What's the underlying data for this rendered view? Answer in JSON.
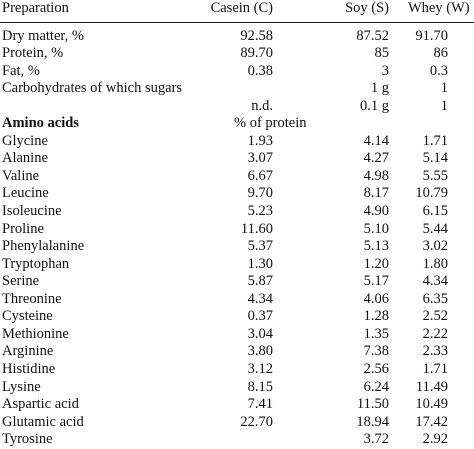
{
  "table": {
    "headers": [
      "Preparation",
      "Casein (C)",
      "Soy (S)",
      "Whey (W)"
    ],
    "rows": [
      {
        "label": "Dry matter, %",
        "c": "92.58",
        "s": "87.52",
        "w": "91.70"
      },
      {
        "label": "Protein, %",
        "c": "89.70",
        "s": "85",
        "w": "86"
      },
      {
        "label": "Fat, %",
        "c": "0.38",
        "s": "3",
        "w": "0.3"
      },
      {
        "label": "Carbohydrates of which sugars",
        "c": "",
        "s": "1 g",
        "w": "1"
      },
      {
        "label": "",
        "c": "n.d.",
        "s": "0.1 g",
        "w": "1"
      },
      {
        "label": "Amino acids",
        "c": "% of protein",
        "s": "",
        "w": "",
        "section": true
      },
      {
        "label": "Glycine",
        "c": "1.93",
        "s": "4.14",
        "w": "1.71"
      },
      {
        "label": "Alanine",
        "c": "3.07",
        "s": "4.27",
        "w": "5.14"
      },
      {
        "label": "Valine",
        "c": "6.67",
        "s": "4.98",
        "w": "5.55"
      },
      {
        "label": "Leucine",
        "c": "9.70",
        "s": "8.17",
        "w": "10.79"
      },
      {
        "label": "Isoleucine",
        "c": "5.23",
        "s": "4.90",
        "w": "6.15"
      },
      {
        "label": "Proline",
        "c": "11.60",
        "s": "5.10",
        "w": "5.44"
      },
      {
        "label": "Phenylalanine",
        "c": "5.37",
        "s": "5.13",
        "w": "3.02"
      },
      {
        "label": "Tryptophan",
        "c": "1.30",
        "s": "1.20",
        "w": "1.80"
      },
      {
        "label": "Serine",
        "c": "5.87",
        "s": "5.17",
        "w": "4.34"
      },
      {
        "label": "Threonine",
        "c": "4.34",
        "s": "4.06",
        "w": "6.35"
      },
      {
        "label": "Cysteine",
        "c": "0.37",
        "s": "1.28",
        "w": "2.52"
      },
      {
        "label": "Methionine",
        "c": "3.04",
        "s": "1.35",
        "w": "2.22"
      },
      {
        "label": "Arginine",
        "c": "3.80",
        "s": "7.38",
        "w": "2.33"
      },
      {
        "label": "Histidine",
        "c": "3.12",
        "s": "2.56",
        "w": "1.71"
      },
      {
        "label": "Lysine",
        "c": "8.15",
        "s": "6.24",
        "w": "11.49"
      },
      {
        "label": "Aspartic acid",
        "c": "7.41",
        "s": "11.50",
        "w": "10.49"
      },
      {
        "label": "Glutamic acid",
        "c": "22.70",
        "s": "18.94",
        "w": "17.42"
      },
      {
        "label": "Tyrosine",
        "c": "",
        "s": "3.72",
        "w": "2.92"
      }
    ]
  }
}
